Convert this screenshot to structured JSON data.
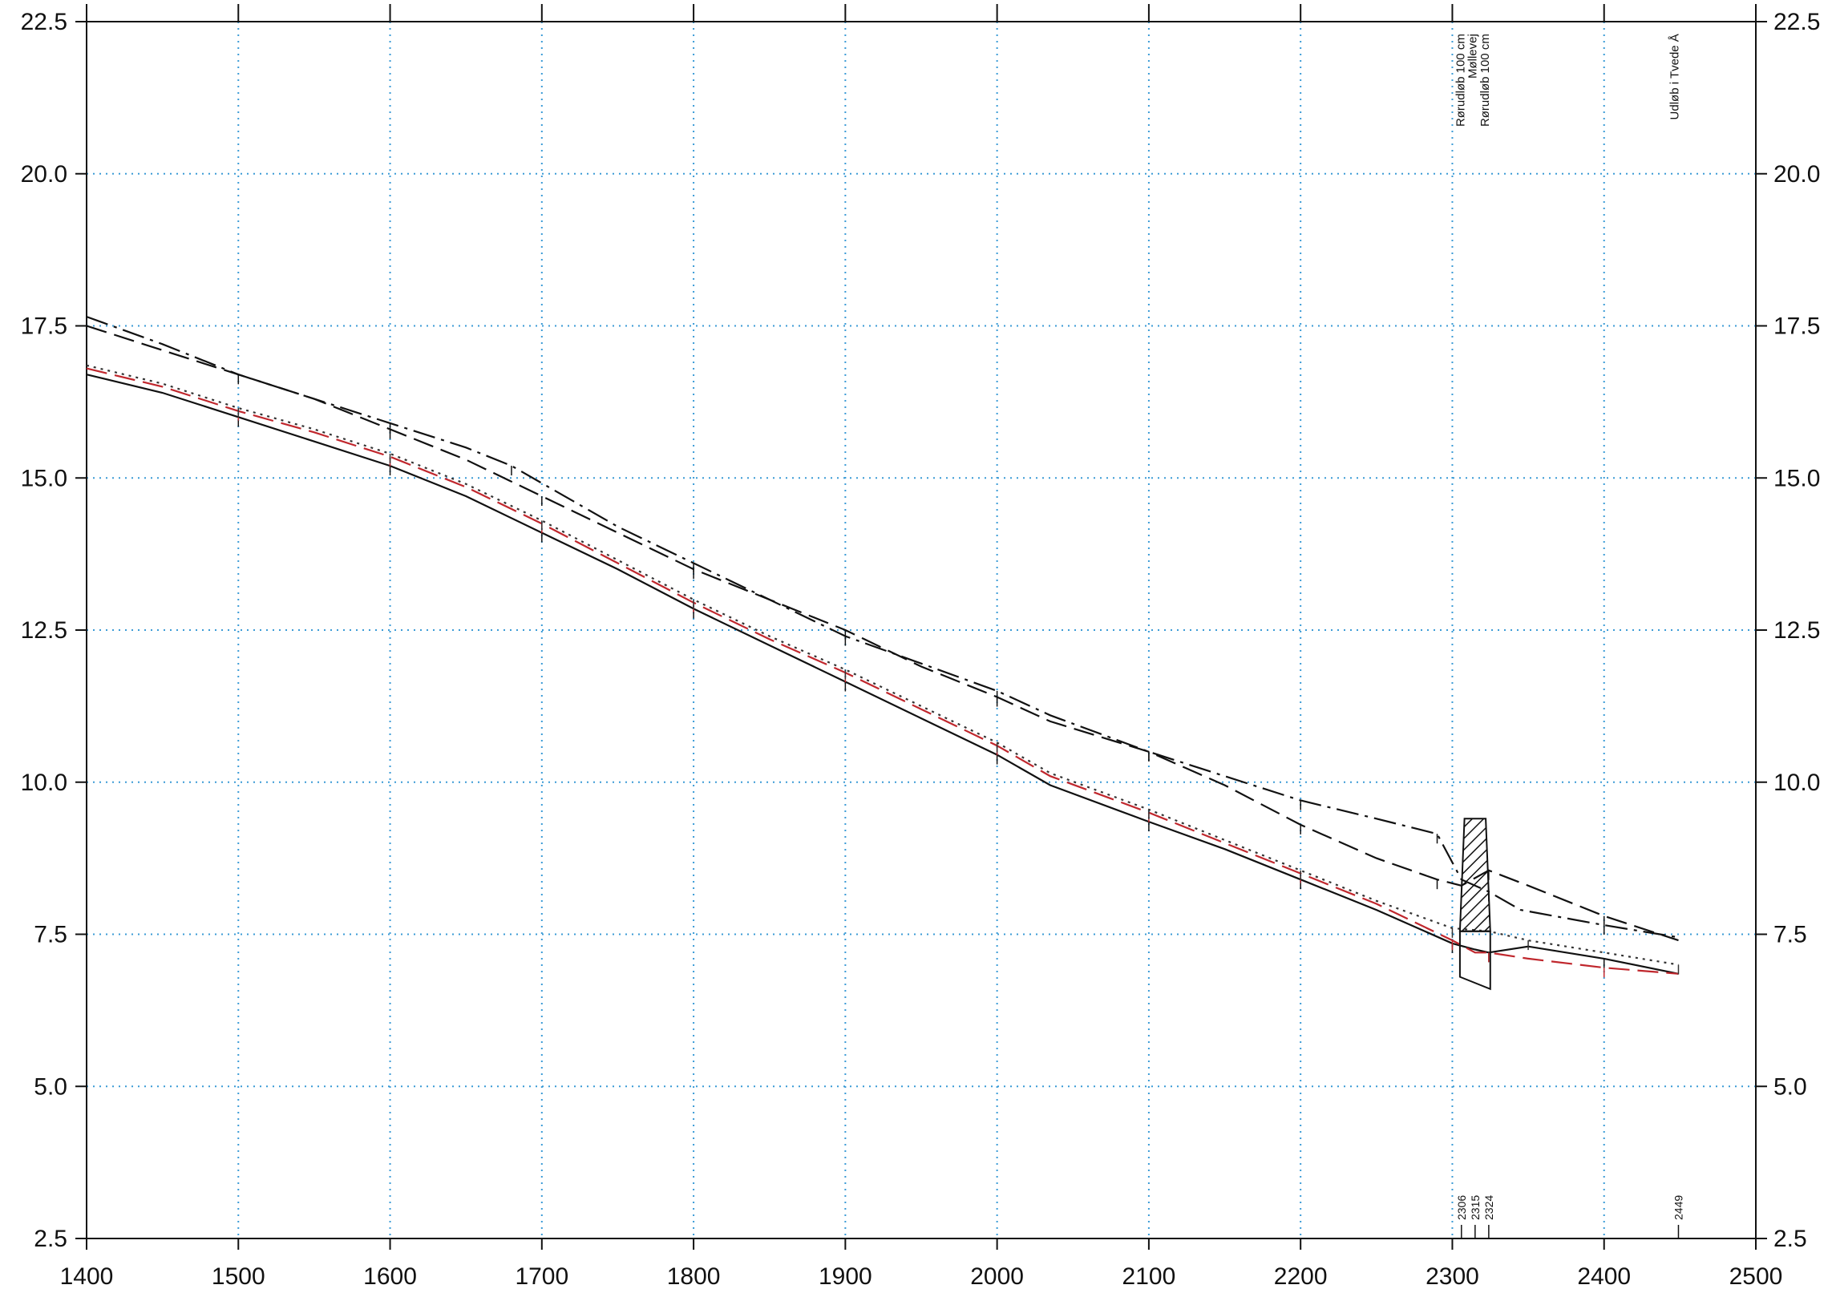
{
  "chart_data": {
    "type": "line",
    "title": "",
    "xlabel": "",
    "ylabel": "",
    "xlim": [
      1400,
      2500
    ],
    "ylim": [
      2.5,
      22.5
    ],
    "x_ticks": [
      1400,
      1500,
      1600,
      1700,
      1800,
      1900,
      2000,
      2100,
      2200,
      2300,
      2400,
      2500
    ],
    "x_tick_labels": [
      "1400",
      "1500",
      "1600",
      "1700",
      "1800",
      "1900",
      "2000",
      "2100",
      "2200",
      "2300",
      "2400",
      "2500"
    ],
    "y_ticks": [
      2.5,
      5.0,
      7.5,
      10.0,
      12.5,
      15.0,
      17.5,
      20.0,
      22.5
    ],
    "y_tick_labels": [
      "2.5",
      "5.0",
      "7.5",
      "10.0",
      "12.5",
      "15.0",
      "17.5",
      "20.0",
      "22.5"
    ],
    "grid": true,
    "y_axis_both_sides": true,
    "series": [
      {
        "style": "solid",
        "color": "#111111",
        "x": [
          1400,
          1450,
          1500,
          1550,
          1600,
          1650,
          1700,
          1750,
          1800,
          1850,
          1900,
          1950,
          2000,
          2035,
          2100,
          2150,
          2200,
          2250,
          2300,
          2315,
          2324,
          2350,
          2400,
          2449
        ],
        "y": [
          16.7,
          16.4,
          16.0,
          15.6,
          15.2,
          14.7,
          14.1,
          13.5,
          12.85,
          12.25,
          11.65,
          11.05,
          10.45,
          9.95,
          9.35,
          8.9,
          8.4,
          7.9,
          7.35,
          7.25,
          7.2,
          7.3,
          7.1,
          6.85
        ]
      },
      {
        "style": "dashed",
        "color": "#c0272d",
        "x": [
          1400,
          1450,
          1500,
          1550,
          1600,
          1650,
          1700,
          1750,
          1800,
          1850,
          1900,
          1950,
          2000,
          2035,
          2100,
          2150,
          2200,
          2250,
          2300,
          2315,
          2324,
          2350,
          2400,
          2449
        ],
        "y": [
          16.8,
          16.5,
          16.1,
          15.75,
          15.35,
          14.85,
          14.25,
          13.6,
          12.95,
          12.35,
          11.8,
          11.2,
          10.6,
          10.1,
          9.5,
          9.0,
          8.5,
          8.0,
          7.4,
          7.2,
          7.2,
          7.1,
          6.95,
          6.85
        ]
      },
      {
        "style": "dotted",
        "color": "#333333",
        "x": [
          1400,
          1450,
          1500,
          1550,
          1600,
          1650,
          1700,
          1750,
          1800,
          1850,
          1900,
          1950,
          2000,
          2035,
          2100,
          2150,
          2200,
          2250,
          2300,
          2324,
          2350,
          2400,
          2449
        ],
        "y": [
          16.85,
          16.55,
          16.15,
          15.8,
          15.4,
          14.9,
          14.3,
          13.65,
          13.0,
          12.4,
          11.85,
          11.25,
          10.65,
          10.15,
          9.55,
          9.05,
          8.55,
          8.05,
          7.6,
          7.55,
          7.4,
          7.2,
          7.0
        ]
      },
      {
        "style": "dashed",
        "color": "#111111",
        "x": [
          1400,
          1450,
          1500,
          1550,
          1600,
          1650,
          1700,
          1750,
          1800,
          1850,
          1900,
          1950,
          2000,
          2035,
          2100,
          2150,
          2200,
          2250,
          2290,
          2306,
          2324,
          2350,
          2400,
          2449
        ],
        "y": [
          17.5,
          17.1,
          16.7,
          16.3,
          15.8,
          15.3,
          14.7,
          14.1,
          13.5,
          13.0,
          12.5,
          11.9,
          11.4,
          11.0,
          10.5,
          9.95,
          9.3,
          8.75,
          8.4,
          8.3,
          8.55,
          8.3,
          7.8,
          7.4
        ]
      },
      {
        "style": "dashdot",
        "color": "#111111",
        "x": [
          1400,
          1450,
          1500,
          1550,
          1600,
          1650,
          1680,
          1750,
          1800,
          1850,
          1900,
          1950,
          2000,
          2035,
          2100,
          2150,
          2200,
          2250,
          2290,
          2306,
          2324,
          2345,
          2400,
          2449
        ],
        "y": [
          17.65,
          17.2,
          16.7,
          16.3,
          15.9,
          15.5,
          15.2,
          14.2,
          13.6,
          13.0,
          12.4,
          11.95,
          11.5,
          11.1,
          10.5,
          10.1,
          9.7,
          9.4,
          9.15,
          8.4,
          8.2,
          7.9,
          7.65,
          7.45
        ]
      }
    ],
    "structure": {
      "x_left_top": 2308,
      "x_right_top": 2322,
      "y_top": 9.4,
      "x_left_bottom": 2305,
      "x_right_bottom": 2325,
      "y_bottom_left": 6.8,
      "y_bottom_right": 6.6,
      "hatch_bottom": 7.55
    },
    "annotations": [
      {
        "text": "Rørudløb 100 cm",
        "x": 2308,
        "y": 22.3
      },
      {
        "text": "Møllevej",
        "x": 2316,
        "y": 22.3
      },
      {
        "text": "Rørudløb 100 cm",
        "x": 2324,
        "y": 22.3
      },
      {
        "text": "Udløb i Tvede Å",
        "x": 2449,
        "y": 22.3
      }
    ],
    "station_markers": [
      {
        "text": "2306",
        "x": 2306
      },
      {
        "text": "2315",
        "x": 2315
      },
      {
        "text": "2324",
        "x": 2324
      },
      {
        "text": "2449",
        "x": 2449
      }
    ]
  }
}
